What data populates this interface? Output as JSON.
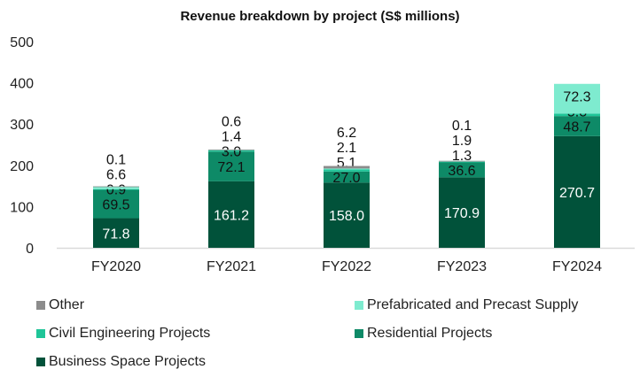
{
  "chart_data": {
    "type": "stacked-bar",
    "title": "Revenue breakdown by project (S$ millions)",
    "xlabel": "",
    "ylabel": "",
    "ylim": [
      0,
      500
    ],
    "yticks": [
      0,
      100,
      200,
      300,
      400,
      500
    ],
    "grid": false,
    "legend_position": "bottom",
    "categories": [
      "FY2020",
      "FY2021",
      "FY2022",
      "FY2023",
      "FY2024"
    ],
    "series": [
      {
        "name": "Business Space Projects",
        "color": "#01523a",
        "label_color": "#ffffff",
        "values": [
          71.8,
          161.2,
          158.0,
          170.9,
          270.7
        ]
      },
      {
        "name": "Residential Projects",
        "color": "#0e8a67",
        "label_color": "#111111",
        "values": [
          69.5,
          72.1,
          27.0,
          36.6,
          48.7
        ]
      },
      {
        "name": "Civil Engineering Projects",
        "color": "#1fc598",
        "label_color": "#111111",
        "values": [
          0.9,
          3.0,
          5.1,
          1.3,
          5.8
        ]
      },
      {
        "name": "Prefabricated and Precast Supply",
        "color": "#7eebcf",
        "label_color": "#111111",
        "values": [
          6.6,
          1.4,
          2.1,
          1.9,
          72.3
        ]
      },
      {
        "name": "Other",
        "color": "#8c8c8c",
        "label_color": "#111111",
        "values": [
          0.1,
          0.6,
          6.2,
          0.1,
          null
        ]
      }
    ],
    "legend_order": [
      "Other",
      "Prefabricated and Precast Supply",
      "Civil Engineering Projects",
      "Residential Projects",
      "Business Space Projects"
    ]
  }
}
